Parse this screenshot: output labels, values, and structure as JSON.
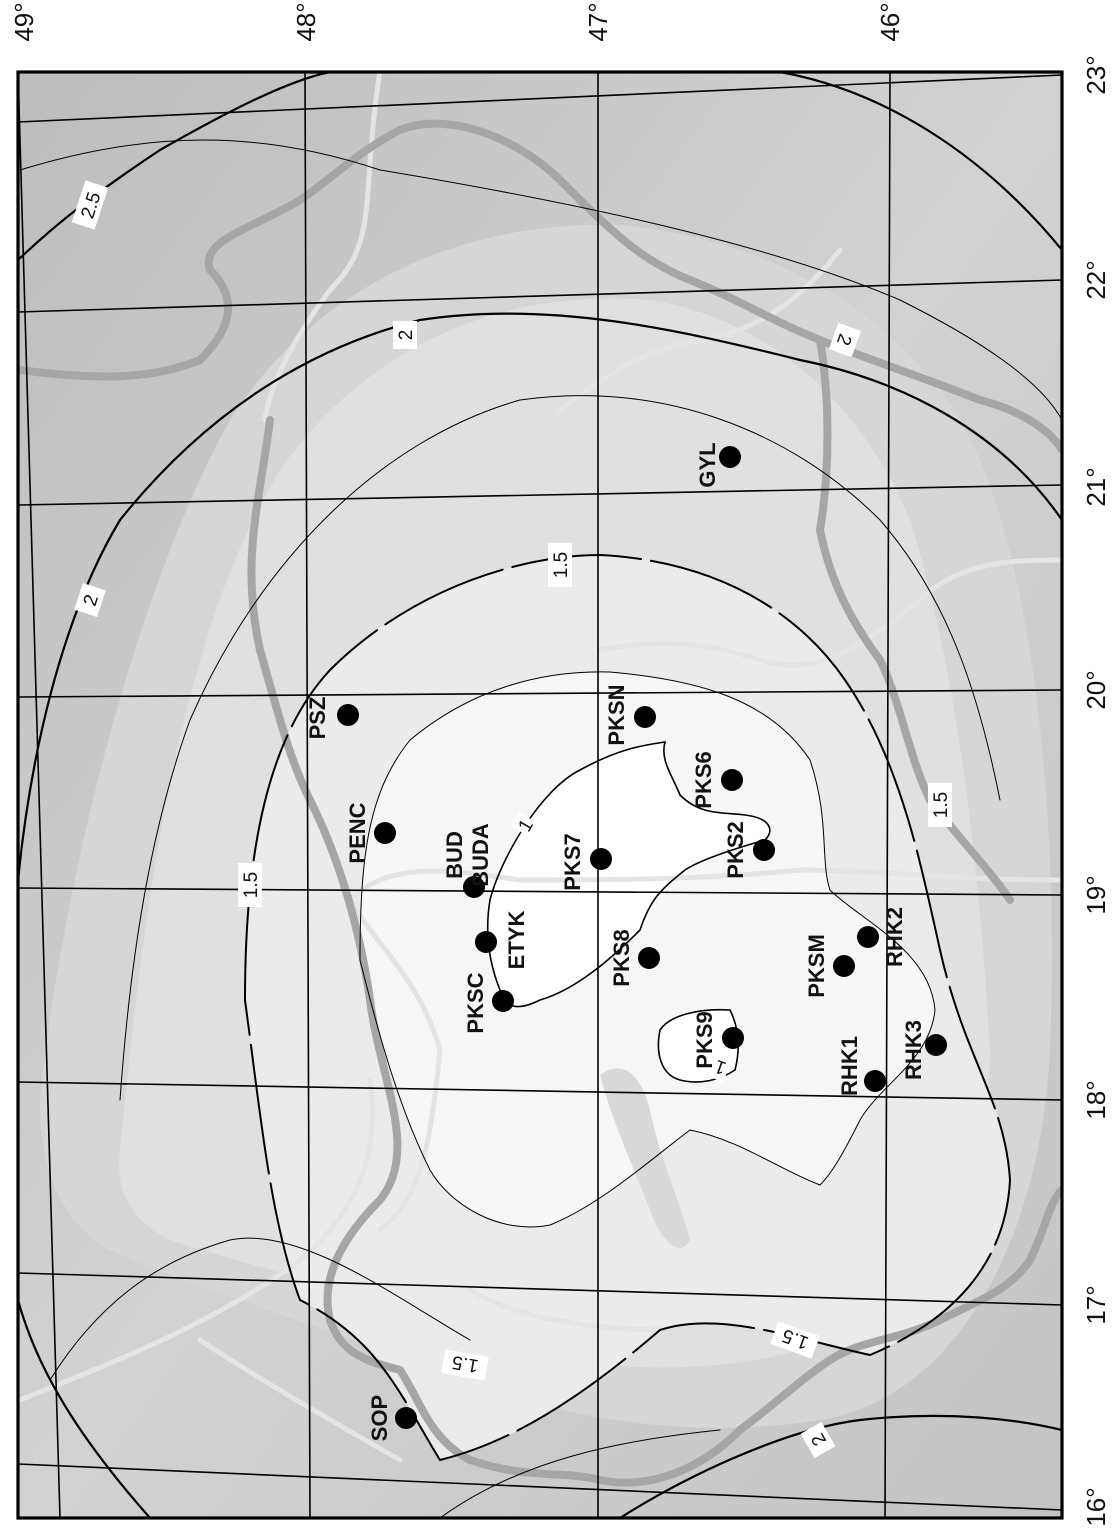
{
  "map": {
    "latitudes": [
      {
        "value": "49°"
      },
      {
        "value": "48°"
      },
      {
        "value": "47°"
      },
      {
        "value": "46°"
      }
    ],
    "longitudes": [
      {
        "value": "23°"
      },
      {
        "value": "22°"
      },
      {
        "value": "21°"
      },
      {
        "value": "20°"
      },
      {
        "value": "19°"
      },
      {
        "value": "18°"
      },
      {
        "value": "17°"
      },
      {
        "value": "16°"
      }
    ],
    "contour_labels": [
      {
        "text": "2.5"
      },
      {
        "text": "2"
      },
      {
        "text": "2"
      },
      {
        "text": "2"
      },
      {
        "text": "1.5"
      },
      {
        "text": "1.5"
      },
      {
        "text": "1.5"
      },
      {
        "text": "1.5"
      },
      {
        "text": "1.5"
      },
      {
        "text": "1"
      },
      {
        "text": "1"
      },
      {
        "text": "2"
      }
    ],
    "stations": [
      {
        "code": "GYL"
      },
      {
        "code": "PSZ"
      },
      {
        "code": "PKSN"
      },
      {
        "code": "PENC"
      },
      {
        "code": "PKS6"
      },
      {
        "code": "BUD"
      },
      {
        "code": "BUDA"
      },
      {
        "code": "PKS7"
      },
      {
        "code": "PKS2"
      },
      {
        "code": "ETYK"
      },
      {
        "code": "PKS8"
      },
      {
        "code": "PKSC"
      },
      {
        "code": "PKSM"
      },
      {
        "code": "RHK2"
      },
      {
        "code": "PKS9"
      },
      {
        "code": "RHK1"
      },
      {
        "code": "RHK3"
      },
      {
        "code": "SOP"
      }
    ],
    "colors": {
      "background": "#c9c9c9",
      "zone_low": "#ffffff",
      "zone_mid": "#eeeeee",
      "contour": "#000000",
      "rivers": "#e2e2e2",
      "borders": "#a9a9a9"
    }
  }
}
